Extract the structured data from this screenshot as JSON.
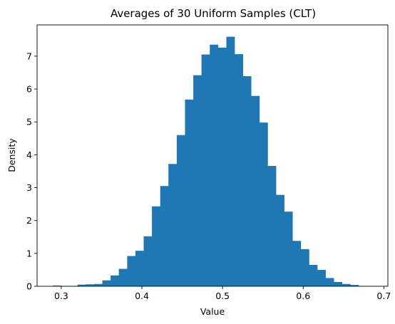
{
  "chart_data": {
    "type": "bar",
    "title": "Averages of 30 Uniform Samples (CLT)",
    "xlabel": "Value",
    "ylabel": "Density",
    "xlim": [
      0.27,
      0.705
    ],
    "ylim": [
      0,
      7.95
    ],
    "xticks": [
      0.3,
      0.4,
      0.5,
      0.6,
      0.7
    ],
    "xtick_labels": [
      "0.3",
      "0.4",
      "0.5",
      "0.6",
      "0.7"
    ],
    "yticks": [
      0,
      1,
      2,
      3,
      4,
      5,
      6,
      7
    ],
    "ytick_labels": [
      "0",
      "1",
      "2",
      "3",
      "4",
      "5",
      "6",
      "7"
    ],
    "grid": false,
    "bar_color": "#1f77b4",
    "bin_edges": [
      0.2894,
      0.2997,
      0.3099,
      0.3202,
      0.3304,
      0.3407,
      0.3509,
      0.3612,
      0.3714,
      0.3817,
      0.3919,
      0.4022,
      0.4124,
      0.4227,
      0.4329,
      0.4432,
      0.4534,
      0.4637,
      0.4739,
      0.4842,
      0.4944,
      0.5047,
      0.5149,
      0.5252,
      0.5354,
      0.5457,
      0.5559,
      0.5662,
      0.5764,
      0.5867,
      0.5969,
      0.6072,
      0.6174,
      0.6277,
      0.6379,
      0.6482,
      0.6584,
      0.6687,
      0.6789,
      0.6892,
      0.7
    ],
    "densities": [
      0.02,
      0.01,
      0.01,
      0.05,
      0.06,
      0.07,
      0.18,
      0.33,
      0.53,
      0.92,
      1.08,
      1.52,
      2.43,
      3.05,
      3.72,
      4.6,
      5.68,
      6.42,
      7.05,
      7.35,
      7.26,
      7.59,
      7.06,
      6.39,
      5.79,
      4.98,
      3.66,
      2.78,
      2.27,
      1.38,
      1.13,
      0.65,
      0.5,
      0.25,
      0.13,
      0.07,
      0.04,
      0.01,
      0.01,
      0.01
    ]
  }
}
